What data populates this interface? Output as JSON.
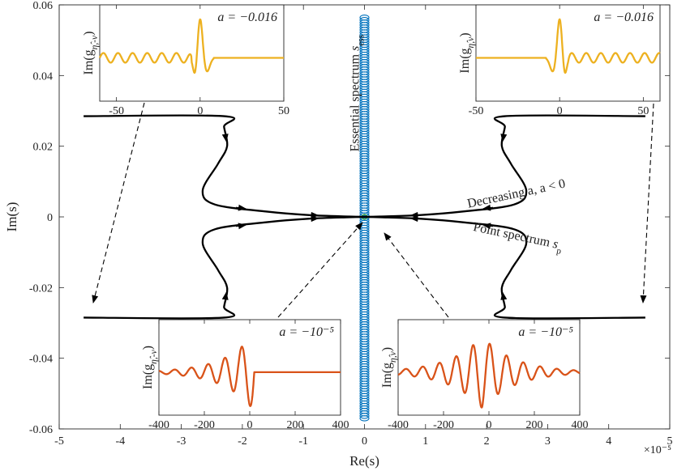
{
  "chart_data": {
    "type": "line",
    "main": {
      "xlabel": "Re(s)",
      "ylabel": "Im(s)",
      "x_exponent": "×10⁻⁵",
      "xlim": [
        -5,
        5
      ],
      "ylim": [
        -0.06,
        0.06
      ],
      "xticks": [
        "-5",
        "-4",
        "-3",
        "-2",
        "-1",
        "0",
        "1",
        "2",
        "3",
        "4",
        "5"
      ],
      "yticks": [
        "-0.06",
        "-0.04",
        "-0.02",
        "0",
        "0.02",
        "0.04",
        "0.06"
      ],
      "ess_label": "Essential spectrum s_ess",
      "ess_label_main": "Essential spectrum ",
      "ess_label_sub": "ess",
      "decreasing_label": "Decreasing a, a < 0",
      "point_label_main": "Point spectrum ",
      "point_label_sub": "p",
      "essential_spectrum": {
        "re": 0,
        "im_range": [
          -0.057,
          0.057
        ]
      },
      "point_spectrum_upper": {
        "x": [
          4.6,
          2.3,
          2.3,
          2.25,
          2.4,
          2.65,
          2.45,
          1.6,
          0.9,
          0.25,
          0.0
        ],
        "y": [
          0.0285,
          0.0285,
          0.0255,
          0.02,
          0.015,
          0.0075,
          0.0035,
          0.0015,
          0.0005,
          0.0001,
          0.0
        ]
      },
      "point_spectrum_lower": {
        "x": [
          4.6,
          2.3,
          2.3,
          2.25,
          2.4,
          2.65,
          2.45,
          1.6,
          0.9,
          0.25,
          0.0
        ],
        "y": [
          -0.0285,
          -0.0285,
          -0.0255,
          -0.02,
          -0.015,
          -0.0075,
          -0.0035,
          -0.0015,
          -0.0005,
          -0.0001,
          0.0
        ]
      }
    },
    "insets": [
      {
        "ylabel": "Im(g_{η̂,-ν})",
        "ylabel_main": "Im(g",
        "ylabel_sub": "η̂,-ν",
        "title": "a = −0.016",
        "xticks": [
          "-50",
          "0",
          "50"
        ],
        "xlim": [
          -60,
          50
        ],
        "color": "#edb120",
        "kind": "left_small"
      },
      {
        "ylabel": "Im(g_{η̂,ν})",
        "ylabel_main": "Im(g",
        "ylabel_sub": "η̂,ν",
        "title": "a = −0.016",
        "xticks": [
          "-50",
          "0",
          "50"
        ],
        "xlim": [
          -50,
          60
        ],
        "color": "#edb120",
        "kind": "right_small"
      },
      {
        "ylabel": "Im(g_{η̂,-ν})",
        "ylabel_main": "Im(g",
        "ylabel_sub": "η̂,-ν",
        "title": "a = −10⁻⁵",
        "xticks": [
          "-400",
          "-200",
          "0",
          "200",
          "400"
        ],
        "xlim": [
          -400,
          400
        ],
        "color": "#d95319",
        "kind": "left_large"
      },
      {
        "ylabel": "Im(g_{η̂,ν})",
        "ylabel_main": "Im(g",
        "ylabel_sub": "η̂,ν",
        "title": "a = −10⁻⁵",
        "xticks": [
          "-400",
          "-200",
          "0",
          "200",
          "400"
        ],
        "xlim": [
          -400,
          400
        ],
        "color": "#d95319",
        "kind": "right_large"
      }
    ]
  }
}
